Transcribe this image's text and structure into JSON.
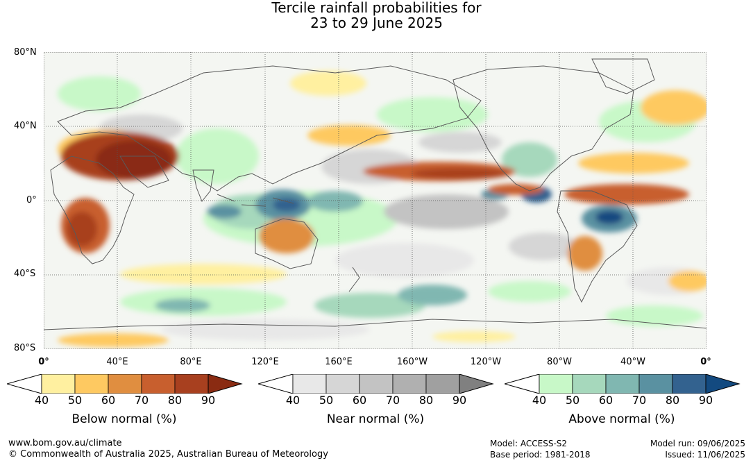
{
  "title_line1": "Tercile rainfall probabilities for",
  "title_line2": "23 to 29 June 2025",
  "lat_labels": [
    "80°N",
    "40°N",
    "0°",
    "40°S",
    "80°S"
  ],
  "lon_labels": [
    "0°",
    "40°E",
    "80°E",
    "120°E",
    "160°E",
    "160°W",
    "120°W",
    "80°W",
    "40°W",
    "0°"
  ],
  "colorbars": [
    {
      "title": "Below normal (%)",
      "ticks": [
        "40",
        "50",
        "60",
        "70",
        "80",
        "90"
      ],
      "colors": [
        "#fff0a0",
        "#fec961",
        "#e08e40",
        "#c85f2e",
        "#a8401f",
        "#8a2b12"
      ]
    },
    {
      "title": "Near normal (%)",
      "ticks": [
        "40",
        "50",
        "60",
        "70",
        "80",
        "90"
      ],
      "colors": [
        "#e8e8e8",
        "#d6d6d6",
        "#c3c3c3",
        "#b0b0b0",
        "#a0a0a0",
        "#808080"
      ]
    },
    {
      "title": "Above normal (%)",
      "ticks": [
        "40",
        "50",
        "60",
        "70",
        "80",
        "90"
      ],
      "colors": [
        "#c8f8c8",
        "#a6d8bc",
        "#80b7b1",
        "#5a91a1",
        "#33628f",
        "#134a80"
      ]
    }
  ],
  "footer": {
    "url": "www.bom.gov.au/climate",
    "copyright": "© Commonwealth of Australia 2025, Australian Bureau of Meteorology",
    "model": "Model: ACCESS-S2",
    "base_period": "Base period: 1981-2018",
    "model_run": "Model run: 09/06/2025",
    "issued": "Issued: 11/06/2025"
  }
}
